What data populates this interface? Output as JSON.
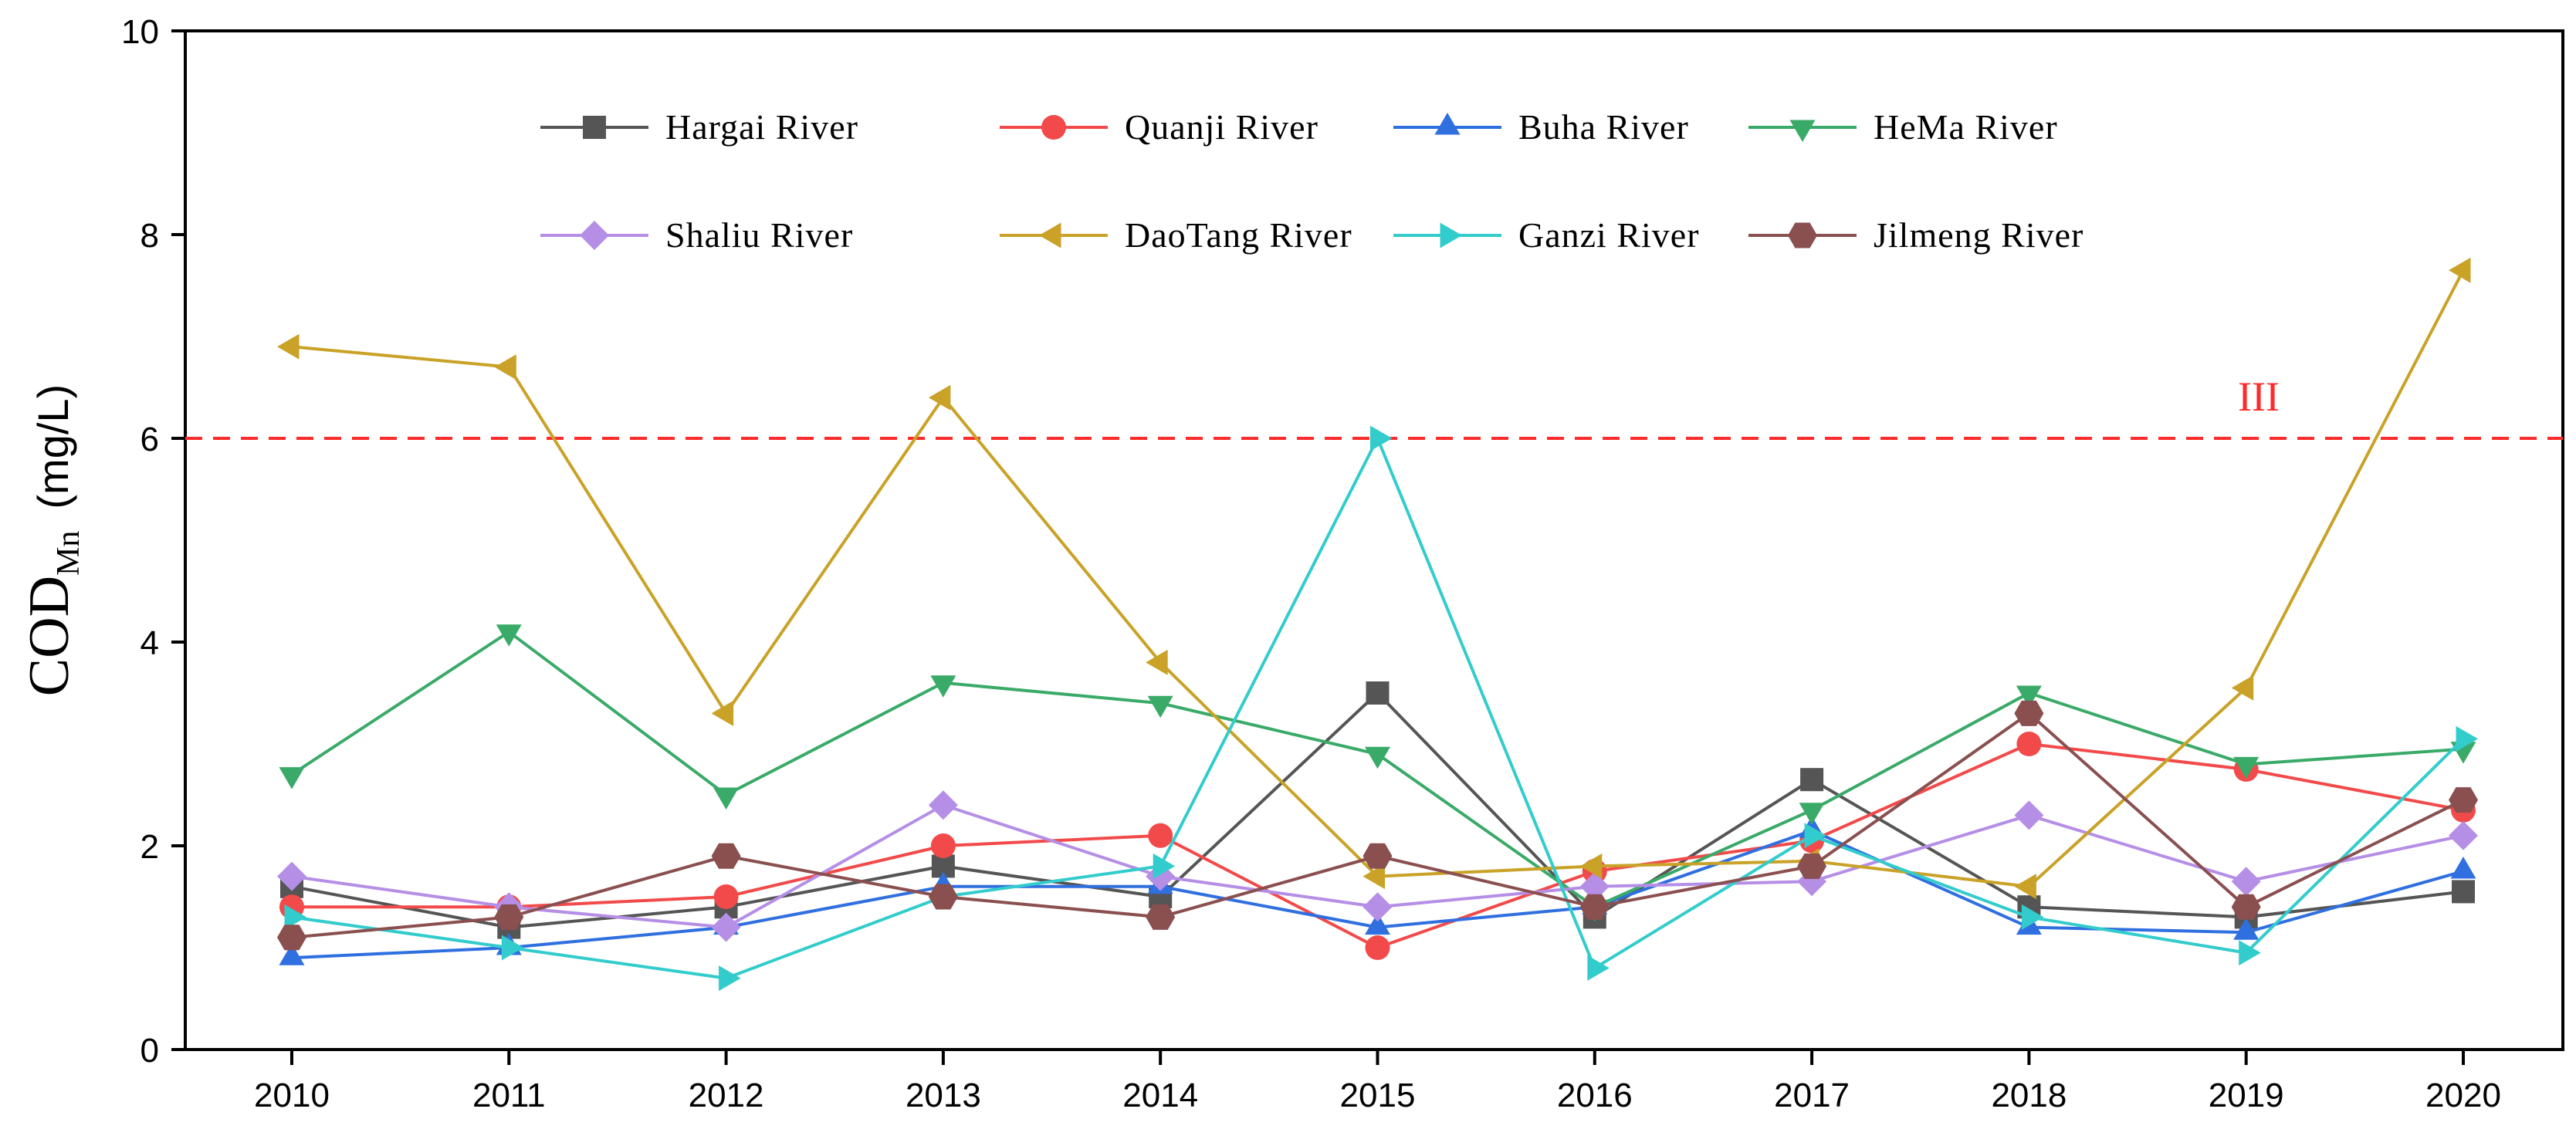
{
  "chart_data": {
    "type": "line",
    "title": "",
    "xlabel": "",
    "ylabel": {
      "main": "COD",
      "subscript": "Mn",
      "unit": "(mg/L)"
    },
    "x": [
      "2010",
      "2011",
      "2012",
      "2013",
      "2014",
      "2015",
      "2016",
      "2017",
      "2018",
      "2019",
      "2020"
    ],
    "ylim": [
      0,
      10
    ],
    "yticks": [
      "0",
      "2",
      "4",
      "6",
      "8",
      "10"
    ],
    "grid": false,
    "legend_position": "top",
    "reference_line": {
      "value": 6,
      "label": "III",
      "color": "#ff2a2a"
    },
    "series": [
      {
        "name": "Hargai River",
        "color": "#555555",
        "marker": "square",
        "values": [
          1.6,
          1.2,
          1.4,
          1.8,
          1.5,
          3.5,
          1.3,
          2.65,
          1.4,
          1.3,
          1.55
        ]
      },
      {
        "name": "Quanji River",
        "color": "#f24a4a",
        "marker": "circle",
        "values": [
          1.4,
          1.4,
          1.5,
          2.0,
          2.1,
          1.0,
          1.75,
          2.05,
          3.0,
          2.75,
          2.35
        ]
      },
      {
        "name": "Buha River",
        "color": "#2f6fe0",
        "marker": "triangle-up",
        "values": [
          0.9,
          1.0,
          1.2,
          1.6,
          1.6,
          1.2,
          1.4,
          2.15,
          1.2,
          1.15,
          1.75
        ]
      },
      {
        "name": "HeMa River",
        "color": "#3aaa68",
        "marker": "triangle-down",
        "values": [
          2.7,
          4.1,
          2.5,
          3.6,
          3.4,
          2.9,
          1.4,
          2.35,
          3.5,
          2.8,
          2.95
        ]
      },
      {
        "name": "Shaliu River",
        "color": "#b58ee6",
        "marker": "diamond",
        "values": [
          1.7,
          1.4,
          1.2,
          2.4,
          1.7,
          1.4,
          1.6,
          1.65,
          2.3,
          1.65,
          2.1
        ]
      },
      {
        "name": "DaoTang River",
        "color": "#c9a227",
        "marker": "triangle-left",
        "values": [
          6.9,
          6.7,
          3.3,
          6.4,
          3.8,
          1.7,
          1.8,
          1.85,
          1.6,
          3.55,
          7.65
        ]
      },
      {
        "name": "Ganzi River",
        "color": "#33cccc",
        "marker": "triangle-right",
        "values": [
          1.3,
          1.0,
          0.7,
          1.5,
          1.8,
          6.0,
          0.8,
          2.1,
          1.3,
          0.95,
          3.05
        ]
      },
      {
        "name": "Jilmeng River",
        "color": "#8a4f4f",
        "marker": "hexagon",
        "values": [
          1.1,
          1.3,
          1.9,
          1.5,
          1.3,
          1.9,
          1.4,
          1.8,
          3.3,
          1.4,
          2.45
        ]
      }
    ]
  }
}
